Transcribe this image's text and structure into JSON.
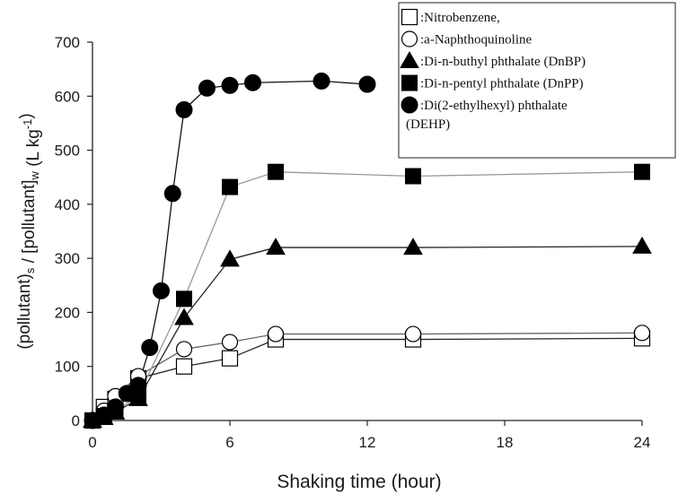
{
  "chart_data": {
    "type": "line",
    "xlabel": "Shaking time (hour)",
    "ylabel": {
      "parts": [
        {
          "t": "(pollutant)",
          "s": "base"
        },
        {
          "t": "s",
          "s": "sub"
        },
        {
          "t": " / [pollutant]",
          "s": "base"
        },
        {
          "t": "w",
          "s": "sub"
        },
        {
          "t": " (L kg",
          "s": "base"
        },
        {
          "t": "-1",
          "s": "sup"
        },
        {
          "t": ")",
          "s": "base"
        }
      ]
    },
    "xlim": [
      0,
      24
    ],
    "ylim": [
      0,
      700
    ],
    "xticks": [
      0,
      6,
      12,
      18,
      24
    ],
    "yticks": [
      0,
      100,
      200,
      300,
      400,
      500,
      600,
      700
    ],
    "grid": false,
    "legend_position": "top-right",
    "series": [
      {
        "name": "Nitrobenzene,",
        "marker": "square-open",
        "color": "#000000",
        "line_color": "#222222",
        "x": [
          0,
          0.5,
          1,
          2,
          4,
          6,
          8,
          14,
          24
        ],
        "y": [
          0,
          25,
          40,
          78,
          100,
          115,
          150,
          150,
          152
        ]
      },
      {
        "name": "a-Naphthoquinoline",
        "marker": "circle-open",
        "color": "#000000",
        "line_color": "#666666",
        "x": [
          0,
          0.5,
          1,
          2,
          4,
          6,
          8,
          14,
          24
        ],
        "y": [
          0,
          18,
          45,
          82,
          132,
          145,
          160,
          160,
          162
        ]
      },
      {
        "name": "Di-n-buthyl phthalate (DnBP)",
        "marker": "triangle",
        "color": "#000000",
        "line_color": "#222222",
        "x": [
          0,
          0.5,
          1,
          2,
          4,
          6,
          8,
          14,
          24
        ],
        "y": [
          0,
          5,
          15,
          40,
          190,
          298,
          320,
          320,
          322
        ]
      },
      {
        "name": "Di-n-pentyl phthalate (DnPP)",
        "marker": "square",
        "color": "#000000",
        "line_color": "#999999",
        "x": [
          0,
          0.5,
          1,
          2,
          4,
          6,
          8,
          14,
          24
        ],
        "y": [
          0,
          8,
          18,
          45,
          225,
          432,
          460,
          452,
          460
        ]
      },
      {
        "name": "Di(2-ethylhexyl) phthalate (DEHP)",
        "legend_lines": [
          "Di(2-ethylhexyl) phthalate",
          "(DEHP)"
        ],
        "marker": "circle",
        "color": "#000000",
        "line_color": "#111111",
        "x": [
          0,
          0.5,
          1,
          1.5,
          2,
          2.5,
          3,
          3.5,
          4,
          5,
          6,
          7,
          10,
          12
        ],
        "y": [
          0,
          10,
          25,
          50,
          65,
          135,
          240,
          420,
          575,
          615,
          620,
          625,
          628,
          622
        ]
      }
    ]
  }
}
